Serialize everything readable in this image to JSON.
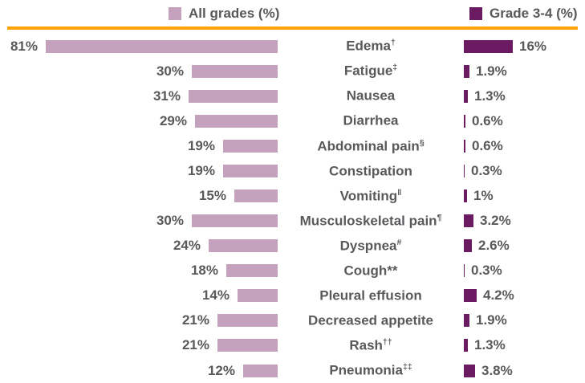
{
  "legend": {
    "items": [
      {
        "label": "All grades (%)",
        "color": "#c4a2be"
      },
      {
        "label": "Grade 3-4 (%)",
        "color": "#6a1b62"
      }
    ]
  },
  "divider_color": "#ffa400",
  "text_color": "#58595b",
  "chart_data": {
    "type": "bar",
    "layout": "tornado-mirrored-horizontal",
    "title": "",
    "legend_position": "top",
    "grid": false,
    "value_unit": "%",
    "left_axis_max": 81,
    "right_axis_max": 16,
    "categories": [
      "Edema",
      "Fatigue",
      "Nausea",
      "Diarrhea",
      "Abdominal pain",
      "Constipation",
      "Vomiting",
      "Musculoskeletal pain",
      "Dyspnea",
      "Cough",
      "Pleural effusion",
      "Decreased appetite",
      "Rash",
      "Pneumonia"
    ],
    "series": [
      {
        "name": "All grades (%)",
        "color": "#c4a2be",
        "values": [
          81,
          30,
          31,
          29,
          19,
          19,
          15,
          30,
          24,
          18,
          14,
          21,
          21,
          12
        ]
      },
      {
        "name": "Grade 3-4 (%)",
        "color": "#6a1b62",
        "values": [
          16,
          1.9,
          1.3,
          0.6,
          0.6,
          0.3,
          1,
          3.2,
          2.6,
          0.3,
          4.2,
          1.9,
          1.3,
          3.8
        ]
      }
    ],
    "rows": [
      {
        "label": "Edema",
        "footnote": "†",
        "footnote_sup": true,
        "all_grades": 81,
        "all_grades_label": "81%",
        "grade34": 16,
        "grade34_label": "16%"
      },
      {
        "label": "Fatigue",
        "footnote": "‡",
        "footnote_sup": true,
        "all_grades": 30,
        "all_grades_label": "30%",
        "grade34": 1.9,
        "grade34_label": "1.9%"
      },
      {
        "label": "Nausea",
        "footnote": "",
        "footnote_sup": false,
        "all_grades": 31,
        "all_grades_label": "31%",
        "grade34": 1.3,
        "grade34_label": "1.3%"
      },
      {
        "label": "Diarrhea",
        "footnote": "",
        "footnote_sup": false,
        "all_grades": 29,
        "all_grades_label": "29%",
        "grade34": 0.6,
        "grade34_label": "0.6%"
      },
      {
        "label": "Abdominal pain",
        "footnote": "§",
        "footnote_sup": true,
        "all_grades": 19,
        "all_grades_label": "19%",
        "grade34": 0.6,
        "grade34_label": "0.6%"
      },
      {
        "label": "Constipation",
        "footnote": "",
        "footnote_sup": false,
        "all_grades": 19,
        "all_grades_label": "19%",
        "grade34": 0.3,
        "grade34_label": "0.3%"
      },
      {
        "label": "Vomiting",
        "footnote": "‖",
        "footnote_sup": true,
        "all_grades": 15,
        "all_grades_label": "15%",
        "grade34": 1,
        "grade34_label": "1%"
      },
      {
        "label": "Musculoskeletal pain",
        "footnote": "¶",
        "footnote_sup": true,
        "all_grades": 30,
        "all_grades_label": "30%",
        "grade34": 3.2,
        "grade34_label": "3.2%"
      },
      {
        "label": "Dyspnea",
        "footnote": "#",
        "footnote_sup": true,
        "all_grades": 24,
        "all_grades_label": "24%",
        "grade34": 2.6,
        "grade34_label": "2.6%"
      },
      {
        "label": "Cough",
        "footnote": "**",
        "footnote_sup": false,
        "all_grades": 18,
        "all_grades_label": "18%",
        "grade34": 0.3,
        "grade34_label": "0.3%"
      },
      {
        "label": "Pleural effusion",
        "footnote": "",
        "footnote_sup": false,
        "all_grades": 14,
        "all_grades_label": "14%",
        "grade34": 4.2,
        "grade34_label": "4.2%"
      },
      {
        "label": "Decreased appetite",
        "footnote": "",
        "footnote_sup": false,
        "all_grades": 21,
        "all_grades_label": "21%",
        "grade34": 1.9,
        "grade34_label": "1.9%"
      },
      {
        "label": "Rash",
        "footnote": "††",
        "footnote_sup": true,
        "all_grades": 21,
        "all_grades_label": "21%",
        "grade34": 1.3,
        "grade34_label": "1.3%"
      },
      {
        "label": "Pneumonia",
        "footnote": "‡‡",
        "footnote_sup": true,
        "all_grades": 12,
        "all_grades_label": "12%",
        "grade34": 3.8,
        "grade34_label": "3.8%"
      }
    ]
  }
}
